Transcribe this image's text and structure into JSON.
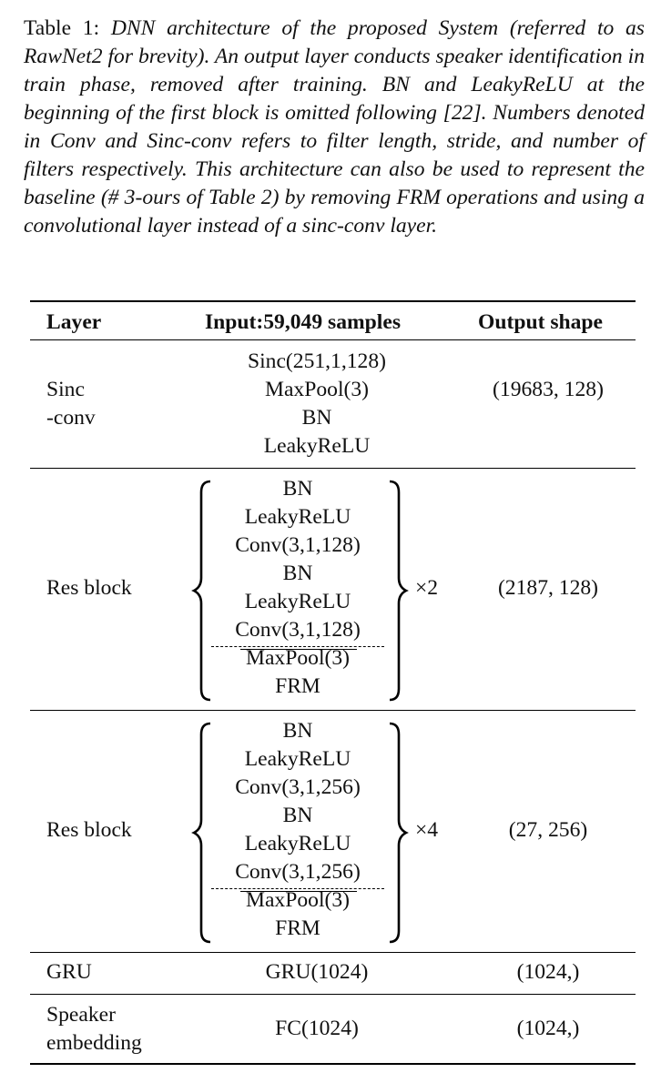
{
  "caption": {
    "label": "Table 1:",
    "text": "DNN architecture of the proposed System (referred to as RawNet2 for brevity). An output layer conducts speaker identification in train phase, removed after training. BN and LeakyReLU at the beginning of the first block is omitted following [22]. Numbers denoted in Conv and Sinc-conv refers to filter length, stride, and number of filters respectively. This architecture can also be used to represent the baseline (# 3-ours of Table 2) by removing FRM operations and using a convolutional layer instead of a sinc-conv layer."
  },
  "table": {
    "headers": [
      "Layer",
      "Input:59,049 samples",
      "Output shape"
    ],
    "rows": [
      {
        "layer": [
          "Sinc",
          "-conv"
        ],
        "ops": [
          "Sinc(251,1,128)",
          "MaxPool(3)",
          "BN",
          "LeakyReLU"
        ],
        "output": "(19683, 128)"
      },
      {
        "layer": [
          "Res block"
        ],
        "ops": [
          "BN",
          "LeakyReLU",
          "Conv(3,1,128)",
          "BN",
          "LeakyReLU",
          "Conv(3,1,128)",
          "MaxPool(3)",
          "FRM"
        ],
        "repeat": "×2",
        "output": "(2187, 128)"
      },
      {
        "layer": [
          "Res block"
        ],
        "ops": [
          "BN",
          "LeakyReLU",
          "Conv(3,1,256)",
          "BN",
          "LeakyReLU",
          "Conv(3,1,256)",
          "MaxPool(3)",
          "FRM"
        ],
        "repeat": "×4",
        "output": "(27, 256)"
      },
      {
        "layer": [
          "GRU"
        ],
        "ops": [
          "GRU(1024)"
        ],
        "output": "(1024,)"
      },
      {
        "layer": [
          "Speaker",
          "embedding"
        ],
        "ops": [
          "FC(1024)"
        ],
        "output": "(1024,)"
      }
    ]
  }
}
